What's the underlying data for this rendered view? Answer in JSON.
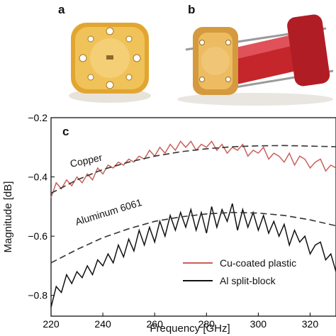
{
  "panels": {
    "a": "a",
    "b": "b",
    "c": "c"
  },
  "photo_a": {
    "description_icon": "waveguide-flange-photo"
  },
  "photo_b": {
    "description_icon": "plastic-waveguide-section-photo"
  },
  "chart_data": {
    "type": "line",
    "xlabel": "Frequency [GHz]",
    "ylabel": "Magnitude [dB]",
    "xlim": [
      220,
      330
    ],
    "ylim": [
      -0.87,
      -0.2
    ],
    "xticks": [
      "220",
      "240",
      "260",
      "280",
      "300",
      "320"
    ],
    "yticks": [
      "−0.2",
      "−0.4",
      "−0.6",
      "−0.8"
    ],
    "xtick_values": [
      220,
      240,
      260,
      280,
      300,
      320
    ],
    "ytick_values": [
      -0.2,
      -0.4,
      -0.6,
      -0.8
    ],
    "annotations": [
      "Copper",
      "Aluminum 6061"
    ],
    "legend": {
      "placement": "bottom-right",
      "entries": [
        "Cu-coated plastic",
        "Al split-block"
      ]
    },
    "series": [
      {
        "name": "Cu-coated plastic",
        "color": "#c9605a",
        "x": [
          220,
          222,
          224,
          226,
          228,
          230,
          232,
          234,
          236,
          238,
          240,
          242,
          244,
          246,
          248,
          250,
          252,
          254,
          256,
          258,
          260,
          262,
          264,
          266,
          268,
          270,
          272,
          274,
          276,
          278,
          280,
          282,
          284,
          286,
          288,
          290,
          292,
          294,
          296,
          298,
          300,
          302,
          304,
          306,
          308,
          310,
          312,
          314,
          316,
          318,
          320,
          322,
          324,
          326,
          328,
          330
        ],
        "values": [
          -0.47,
          -0.42,
          -0.44,
          -0.41,
          -0.43,
          -0.4,
          -0.42,
          -0.39,
          -0.41,
          -0.37,
          -0.39,
          -0.36,
          -0.37,
          -0.35,
          -0.36,
          -0.34,
          -0.35,
          -0.33,
          -0.34,
          -0.31,
          -0.33,
          -0.3,
          -0.32,
          -0.29,
          -0.31,
          -0.28,
          -0.3,
          -0.28,
          -0.31,
          -0.29,
          -0.3,
          -0.28,
          -0.31,
          -0.29,
          -0.32,
          -0.3,
          -0.31,
          -0.29,
          -0.33,
          -0.31,
          -0.32,
          -0.3,
          -0.34,
          -0.32,
          -0.33,
          -0.35,
          -0.32,
          -0.36,
          -0.33,
          -0.34,
          -0.37,
          -0.35,
          -0.34,
          -0.38,
          -0.36,
          -0.37
        ]
      },
      {
        "name": "Al split-block",
        "color": "#111111",
        "x": [
          220,
          222,
          224,
          226,
          228,
          230,
          232,
          234,
          236,
          238,
          240,
          242,
          244,
          246,
          248,
          250,
          252,
          254,
          256,
          258,
          260,
          262,
          264,
          266,
          268,
          270,
          272,
          274,
          276,
          278,
          280,
          282,
          284,
          286,
          288,
          290,
          292,
          294,
          296,
          298,
          300,
          302,
          304,
          306,
          308,
          310,
          312,
          314,
          316,
          318,
          320,
          322,
          324,
          326,
          328,
          330
        ],
        "values": [
          -0.84,
          -0.77,
          -0.79,
          -0.73,
          -0.76,
          -0.72,
          -0.74,
          -0.7,
          -0.73,
          -0.68,
          -0.7,
          -0.66,
          -0.69,
          -0.63,
          -0.67,
          -0.61,
          -0.65,
          -0.58,
          -0.63,
          -0.57,
          -0.62,
          -0.55,
          -0.6,
          -0.53,
          -0.58,
          -0.52,
          -0.57,
          -0.51,
          -0.58,
          -0.52,
          -0.59,
          -0.5,
          -0.57,
          -0.51,
          -0.55,
          -0.49,
          -0.58,
          -0.51,
          -0.57,
          -0.52,
          -0.58,
          -0.53,
          -0.59,
          -0.55,
          -0.6,
          -0.56,
          -0.63,
          -0.58,
          -0.62,
          -0.6,
          -0.66,
          -0.63,
          -0.62,
          -0.68,
          -0.66,
          -0.72
        ]
      },
      {
        "name": "Copper",
        "color": "#333333",
        "style": "dashed",
        "x": [
          220,
          230,
          240,
          250,
          260,
          270,
          280,
          290,
          300,
          310,
          320,
          330
        ],
        "values": [
          -0.455,
          -0.41,
          -0.375,
          -0.35,
          -0.33,
          -0.315,
          -0.305,
          -0.298,
          -0.295,
          -0.294,
          -0.296,
          -0.298
        ]
      },
      {
        "name": "Aluminum 6061",
        "color": "#333333",
        "style": "dashed",
        "x": [
          220,
          230,
          240,
          250,
          260,
          270,
          280,
          290,
          300,
          310,
          320,
          330
        ],
        "values": [
          -0.69,
          -0.645,
          -0.605,
          -0.575,
          -0.55,
          -0.535,
          -0.525,
          -0.52,
          -0.522,
          -0.53,
          -0.545,
          -0.565
        ]
      }
    ]
  }
}
